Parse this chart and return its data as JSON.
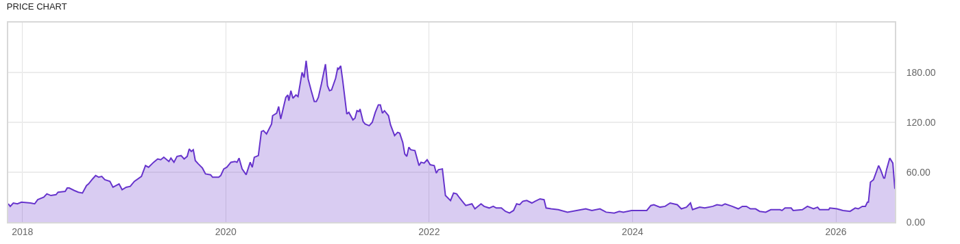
{
  "chart_data": {
    "type": "area",
    "title": "PRICE CHART",
    "x": [
      2017.86,
      2017.88,
      2017.91,
      2017.95,
      2017.99,
      2018.08,
      2018.12,
      2018.15,
      2018.21,
      2018.24,
      2018.28,
      2018.33,
      2018.35,
      2018.42,
      2018.44,
      2018.46,
      2018.51,
      2018.55,
      2018.59,
      2018.63,
      2018.65,
      2018.69,
      2018.72,
      2018.75,
      2018.78,
      2018.81,
      2018.86,
      2018.89,
      2018.95,
      2018.98,
      2019.02,
      2019.06,
      2019.1,
      2019.17,
      2019.21,
      2019.24,
      2019.29,
      2019.33,
      2019.36,
      2019.39,
      2019.44,
      2019.46,
      2019.49,
      2019.52,
      2019.56,
      2019.59,
      2019.62,
      2019.64,
      2019.66,
      2019.68,
      2019.7,
      2019.73,
      2019.77,
      2019.8,
      2019.85,
      2019.87,
      2019.93,
      2019.95,
      2019.98,
      2020.01,
      2020.05,
      2020.09,
      2020.11,
      2020.13,
      2020.16,
      2020.2,
      2020.24,
      2020.26,
      2020.28,
      2020.32,
      2020.35,
      2020.37,
      2020.4,
      2020.45,
      2020.46,
      2020.5,
      2020.52,
      2020.54,
      2020.59,
      2020.61,
      2020.62,
      2020.64,
      2020.66,
      2020.69,
      2020.71,
      2020.75,
      2020.77,
      2020.79,
      2020.81,
      2020.84,
      2020.87,
      2020.89,
      2020.91,
      2020.94,
      2020.98,
      2021.0,
      2021.02,
      2021.04,
      2021.08,
      2021.1,
      2021.11,
      2021.13,
      2021.15,
      2021.19,
      2021.21,
      2021.25,
      2021.27,
      2021.29,
      2021.31,
      2021.32,
      2021.35,
      2021.37,
      2021.41,
      2021.44,
      2021.47,
      2021.5,
      2021.52,
      2021.54,
      2021.56,
      2021.6,
      2021.62,
      2021.66,
      2021.69,
      2021.71,
      2021.74,
      2021.76,
      2021.78,
      2021.8,
      2021.82,
      2021.86,
      2021.9,
      2021.92,
      2021.95,
      2021.98,
      2022.01,
      2022.05,
      2022.07,
      2022.09,
      2022.13,
      2022.16,
      2022.21,
      2022.24,
      2022.27,
      2022.3,
      2022.34,
      2022.36,
      2022.42,
      2022.45,
      2022.51,
      2022.54,
      2022.59,
      2022.63,
      2022.66,
      2022.71,
      2022.75,
      2022.79,
      2022.83,
      2022.86,
      2022.89,
      2022.92,
      2022.96,
      2023.01,
      2023.04,
      2023.09,
      2023.13,
      2023.15,
      2023.2,
      2023.27,
      2023.36,
      2023.45,
      2023.54,
      2023.6,
      2023.68,
      2023.74,
      2023.82,
      2023.87,
      2023.91,
      2023.99,
      2024.05,
      2024.14,
      2024.18,
      2024.21,
      2024.27,
      2024.32,
      2024.37,
      2024.44,
      2024.48,
      2024.53,
      2024.57,
      2024.59,
      2024.66,
      2024.71,
      2024.79,
      2024.83,
      2024.88,
      2024.91,
      2024.98,
      2025.04,
      2025.08,
      2025.12,
      2025.16,
      2025.21,
      2025.25,
      2025.31,
      2025.36,
      2025.45,
      2025.47,
      2025.5,
      2025.56,
      2025.58,
      2025.67,
      2025.72,
      2025.78,
      2025.82,
      2025.84,
      2025.93,
      2025.94,
      2026.01,
      2026.07,
      2026.14,
      2026.19,
      2026.22,
      2026.26,
      2026.29,
      2026.31,
      2026.32,
      2026.34,
      2026.37,
      2026.42,
      2026.44,
      2026.47,
      2026.48,
      2026.5,
      2026.53,
      2026.56,
      2026.58
    ],
    "series": [
      {
        "color": "#6633cc",
        "values": [
          22,
          19,
          23,
          22,
          24,
          23,
          22,
          27,
          30,
          34,
          32,
          33,
          36,
          37,
          41,
          41,
          38,
          36,
          35,
          44,
          46,
          52,
          56,
          54,
          55,
          51,
          49,
          42,
          46,
          39,
          42,
          43,
          49,
          55,
          68,
          66,
          72,
          76,
          75,
          78,
          73,
          77,
          72,
          79,
          80,
          76,
          79,
          88,
          85,
          87,
          74,
          70,
          65,
          58,
          57,
          54,
          54,
          56,
          64,
          66,
          72,
          73,
          72,
          77,
          64,
          57,
          72,
          66,
          78,
          80,
          109,
          110,
          106,
          118,
          128,
          131,
          139,
          124,
          150,
          153,
          146,
          158,
          149,
          153,
          151,
          180,
          174,
          194,
          172,
          158,
          145,
          145,
          150,
          166,
          190,
          164,
          158,
          159,
          173,
          185,
          184,
          188,
          170,
          130,
          132,
          123,
          125,
          134,
          133,
          136,
          121,
          118,
          116,
          120,
          132,
          141,
          141,
          131,
          134,
          128,
          117,
          104,
          108,
          107,
          96,
          82,
          79,
          90,
          87,
          86,
          68,
          72,
          71,
          75,
          69,
          68,
          59,
          63,
          64,
          32,
          26,
          35,
          34,
          29,
          23,
          20,
          22,
          16,
          22,
          19,
          17,
          19,
          17,
          17,
          13,
          11,
          14,
          22,
          21,
          25,
          26,
          23,
          25,
          28,
          27,
          17,
          16,
          15,
          12,
          14,
          16,
          14,
          16,
          12,
          11,
          13,
          12,
          14,
          14,
          14,
          20,
          21,
          18,
          19,
          23,
          21,
          16,
          18,
          23,
          15,
          18,
          17,
          19,
          21,
          20,
          22,
          19,
          16,
          19,
          19,
          16,
          16,
          13,
          12,
          15,
          15,
          14,
          17,
          17,
          14,
          15,
          19,
          16,
          18,
          15,
          15,
          17,
          16,
          14,
          13,
          17,
          16,
          19,
          19,
          24,
          24,
          48,
          51,
          68,
          63,
          53,
          53,
          64,
          77,
          71,
          40
        ]
      }
    ],
    "xlim": [
      2017.86,
      2026.58
    ],
    "xticks": [
      2018,
      2020,
      2022,
      2024,
      2026
    ],
    "ylim": [
      0,
      240
    ],
    "yticks": [
      {
        "value": 0,
        "label": "0.00"
      },
      {
        "value": 60,
        "label": "60.00"
      },
      {
        "value": 120,
        "label": "120.00"
      },
      {
        "value": 180,
        "label": "180.00"
      }
    ],
    "grid": true,
    "marker": "none",
    "line_style": "solid"
  }
}
